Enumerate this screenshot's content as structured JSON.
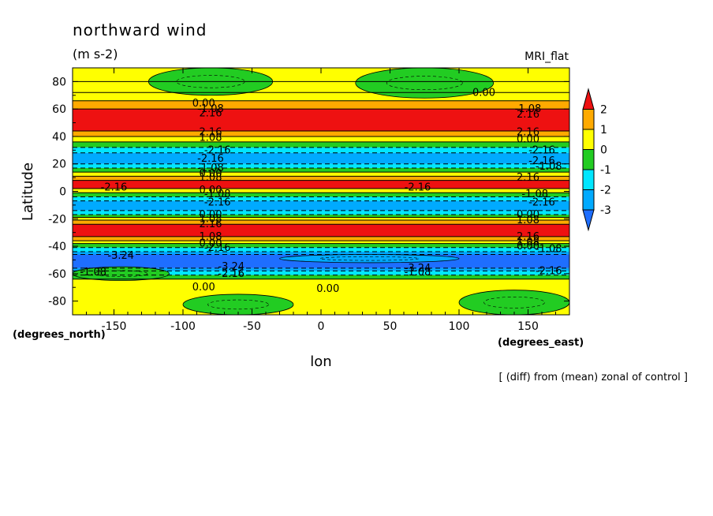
{
  "chart_data": {
    "type": "heatmap",
    "title": "northward wind",
    "units": "(m s-2)",
    "model_label": "MRI_flat",
    "xlabel": "lon",
    "ylabel": "Latitude",
    "x_units": "(degrees_east)",
    "y_units": "(degrees_north)",
    "footnote": "[ (diff) from (mean) zonal of control ]",
    "xlim": [
      -180,
      180
    ],
    "ylim": [
      -90,
      90
    ],
    "x_ticks": [
      -150,
      -100,
      -50,
      0,
      50,
      100,
      150
    ],
    "x_tick_labels": [
      "-150",
      "-100",
      "-50",
      "0",
      "50",
      "100",
      "150"
    ],
    "y_ticks": [
      -80,
      -60,
      -40,
      -20,
      0,
      20,
      40,
      60,
      80
    ],
    "y_tick_labels": [
      "-80",
      "-60",
      "-40",
      "-20",
      "0",
      "20",
      "40",
      "60",
      "80"
    ],
    "colorbar": {
      "levels": [
        -3,
        -2,
        -1,
        0,
        1,
        2
      ],
      "tick_labels": [
        "2",
        "1",
        "0",
        "-1",
        "-2",
        "-3"
      ],
      "colors": {
        "below_-3": "#1e6eff",
        "-3_to_-2": "#00aaff",
        "-2_to_-1": "#00e6ff",
        "-1_to_0": "#22cc22",
        "0_to_1": "#ffff00",
        "1_to_2": "#ffaa00",
        "above_2": "#ee1111"
      }
    },
    "zonal_bands": [
      {
        "lat_from": 80,
        "lat_to": 90,
        "value": 0.5
      },
      {
        "lat_from": 72,
        "lat_to": 80,
        "value": 0.3
      },
      {
        "lat_from": 66,
        "lat_to": 72,
        "value": 0.5
      },
      {
        "lat_from": 60,
        "lat_to": 66,
        "value": 1.5
      },
      {
        "lat_from": 44,
        "lat_to": 60,
        "value": 2.5
      },
      {
        "lat_from": 40,
        "lat_to": 44,
        "value": 1.5
      },
      {
        "lat_from": 36,
        "lat_to": 40,
        "value": 0.5
      },
      {
        "lat_from": 32,
        "lat_to": 36,
        "value": -0.5
      },
      {
        "lat_from": 28,
        "lat_to": 32,
        "value": -1.5
      },
      {
        "lat_from": 20,
        "lat_to": 28,
        "value": -2.5
      },
      {
        "lat_from": 17,
        "lat_to": 20,
        "value": -1.5
      },
      {
        "lat_from": 14,
        "lat_to": 17,
        "value": -0.5
      },
      {
        "lat_from": 11,
        "lat_to": 14,
        "value": 0.5
      },
      {
        "lat_from": 8,
        "lat_to": 11,
        "value": 1.5
      },
      {
        "lat_from": 2,
        "lat_to": 8,
        "value": 2.5
      },
      {
        "lat_from": -1,
        "lat_to": 2,
        "value": 0.5
      },
      {
        "lat_from": -4,
        "lat_to": -1,
        "value": -0.5
      },
      {
        "lat_from": -7,
        "lat_to": -4,
        "value": -1.5
      },
      {
        "lat_from": -14,
        "lat_to": -7,
        "value": -2.5
      },
      {
        "lat_from": -17,
        "lat_to": -14,
        "value": -1.5
      },
      {
        "lat_from": -19,
        "lat_to": -17,
        "value": -0.5
      },
      {
        "lat_from": -21,
        "lat_to": -19,
        "value": 0.5
      },
      {
        "lat_from": -24,
        "lat_to": -21,
        "value": 1.5
      },
      {
        "lat_from": -33,
        "lat_to": -24,
        "value": 2.5
      },
      {
        "lat_from": -36,
        "lat_to": -33,
        "value": 1.5
      },
      {
        "lat_from": -38,
        "lat_to": -36,
        "value": 0.5
      },
      {
        "lat_from": -41,
        "lat_to": -38,
        "value": -0.5
      },
      {
        "lat_from": -44,
        "lat_to": -41,
        "value": -1.5
      },
      {
        "lat_from": -46,
        "lat_to": -44,
        "value": -2.5
      },
      {
        "lat_from": -56,
        "lat_to": -46,
        "value": -3.5
      },
      {
        "lat_from": -58,
        "lat_to": -56,
        "value": -2.5
      },
      {
        "lat_from": -61,
        "lat_to": -58,
        "value": -1.5
      },
      {
        "lat_from": -64,
        "lat_to": -61,
        "value": -0.5
      },
      {
        "lat_from": -90,
        "lat_to": -64,
        "value": 0.5
      }
    ],
    "regional_features": [
      {
        "lon_from": -125,
        "lon_to": -35,
        "lat_from": 70,
        "lat_to": 90,
        "value": -0.5
      },
      {
        "lon_from": 25,
        "lon_to": 125,
        "lat_from": 68,
        "lat_to": 90,
        "value": -0.5
      },
      {
        "lon_from": -100,
        "lon_to": -20,
        "lat_from": -90,
        "lat_to": -75,
        "value": -0.5
      },
      {
        "lon_from": 100,
        "lon_to": 180,
        "lat_from": -90,
        "lat_to": -72,
        "value": -0.5
      },
      {
        "lon_from": -180,
        "lon_to": -110,
        "lat_from": -65,
        "lat_to": -55,
        "value": -0.5
      },
      {
        "lon_from": -30,
        "lon_to": 100,
        "lat_from": -52,
        "lat_to": -46,
        "value": -2.5
      }
    ],
    "contour_labels": [
      {
        "text": "0.00",
        "lon": -85,
        "lat": 64
      },
      {
        "text": "-1.08",
        "lon": -80,
        "lat": 60
      },
      {
        "text": "2.16",
        "lon": -80,
        "lat": 57
      },
      {
        "text": "0.00",
        "lon": 118,
        "lat": 72
      },
      {
        "text": "-1.08",
        "lon": 150,
        "lat": 60
      },
      {
        "text": "2.16",
        "lon": 150,
        "lat": 56
      },
      {
        "text": "2.16",
        "lon": -80,
        "lat": 43
      },
      {
        "text": "1.08",
        "lon": -80,
        "lat": 39
      },
      {
        "text": "-2.16",
        "lon": -75,
        "lat": 30
      },
      {
        "text": "-2.16",
        "lon": -80,
        "lat": 24
      },
      {
        "text": "2.16",
        "lon": 150,
        "lat": 43
      },
      {
        "text": "0.00",
        "lon": 150,
        "lat": 38
      },
      {
        "text": "-2.16",
        "lon": 160,
        "lat": 30
      },
      {
        "text": "-2.16",
        "lon": 160,
        "lat": 22
      },
      {
        "text": "-1.08",
        "lon": 165,
        "lat": 18
      },
      {
        "text": "-1.08",
        "lon": -80,
        "lat": 17
      },
      {
        "text": "0.00",
        "lon": -80,
        "lat": 13
      },
      {
        "text": "1.08",
        "lon": -80,
        "lat": 10
      },
      {
        "text": "2.16",
        "lon": 150,
        "lat": 10
      },
      {
        "text": "-2.16",
        "lon": -150,
        "lat": 3
      },
      {
        "text": "-2.16",
        "lon": 70,
        "lat": 3
      },
      {
        "text": "0.00",
        "lon": -80,
        "lat": 1
      },
      {
        "text": "-1.08",
        "lon": -75,
        "lat": -2
      },
      {
        "text": "-2.16",
        "lon": -75,
        "lat": -8
      },
      {
        "text": "-1.08",
        "lon": 155,
        "lat": -2
      },
      {
        "text": "-2.16",
        "lon": 160,
        "lat": -8
      },
      {
        "text": "0.00",
        "lon": -80,
        "lat": -17
      },
      {
        "text": "1.08",
        "lon": -80,
        "lat": -20
      },
      {
        "text": "2.16",
        "lon": -80,
        "lat": -24
      },
      {
        "text": "0.00",
        "lon": 150,
        "lat": -17
      },
      {
        "text": "1.08",
        "lon": 150,
        "lat": -21
      },
      {
        "text": "2.16",
        "lon": 150,
        "lat": -33
      },
      {
        "text": "1.08",
        "lon": -80,
        "lat": -33
      },
      {
        "text": "0.00",
        "lon": -80,
        "lat": -38
      },
      {
        "text": "-2.16",
        "lon": -75,
        "lat": -41
      },
      {
        "text": "1.08",
        "lon": 150,
        "lat": -37
      },
      {
        "text": "0.00",
        "lon": 150,
        "lat": -40
      },
      {
        "text": "-1.08",
        "lon": 165,
        "lat": -42
      },
      {
        "text": "-3.24",
        "lon": -145,
        "lat": -47
      },
      {
        "text": "-3.24",
        "lon": -65,
        "lat": -55
      },
      {
        "text": "-3.24",
        "lon": 70,
        "lat": -56
      },
      {
        "text": "-2.16",
        "lon": -65,
        "lat": -60
      },
      {
        "text": "-1.08",
        "lon": -165,
        "lat": -59
      },
      {
        "text": "-1.08",
        "lon": 70,
        "lat": -59
      },
      {
        "text": "-2.16",
        "lon": 165,
        "lat": -58
      },
      {
        "text": "0.00",
        "lon": -85,
        "lat": -70
      },
      {
        "text": "0.00",
        "lon": 5,
        "lat": -71
      }
    ]
  }
}
